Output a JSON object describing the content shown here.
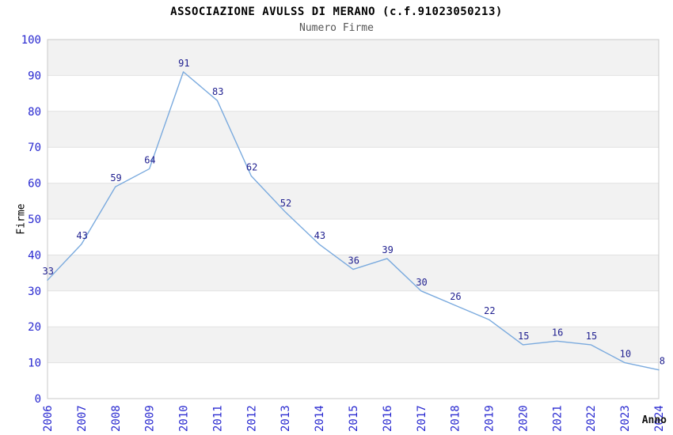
{
  "chart": {
    "title": "ASSOCIAZIONE AVULSS DI MERANO (c.f.91023050213)",
    "subtitle": "Numero Firme",
    "ylabel": "Firme",
    "xlabel": "Anno"
  },
  "chart_data": {
    "type": "line",
    "title": "ASSOCIAZIONE AVULSS DI MERANO (c.f.91023050213)",
    "subtitle": "Numero Firme",
    "xlabel": "Anno",
    "ylabel": "Firme",
    "categories": [
      "2006",
      "2007",
      "2008",
      "2009",
      "2010",
      "2011",
      "2012",
      "2013",
      "2014",
      "2015",
      "2016",
      "2017",
      "2018",
      "2019",
      "2020",
      "2021",
      "2022",
      "2023",
      "2024"
    ],
    "values": [
      33,
      43,
      59,
      64,
      91,
      83,
      62,
      52,
      43,
      36,
      39,
      30,
      26,
      22,
      15,
      16,
      15,
      10,
      8
    ],
    "ylim": [
      0,
      100
    ],
    "ytick_step": 10,
    "grid": "horizontal-bands",
    "legend": "none",
    "point_labels_visible": true,
    "colors": {
      "line": "#7aaade",
      "value_label": "#1f1f8f",
      "tick_label": "#2828d0",
      "title": "#000000",
      "subtitle": "#555555",
      "band": "#f2f2f2",
      "gridline": "#e2e2e2",
      "plot_border": "#c8c8c8",
      "background": "#ffffff"
    }
  }
}
